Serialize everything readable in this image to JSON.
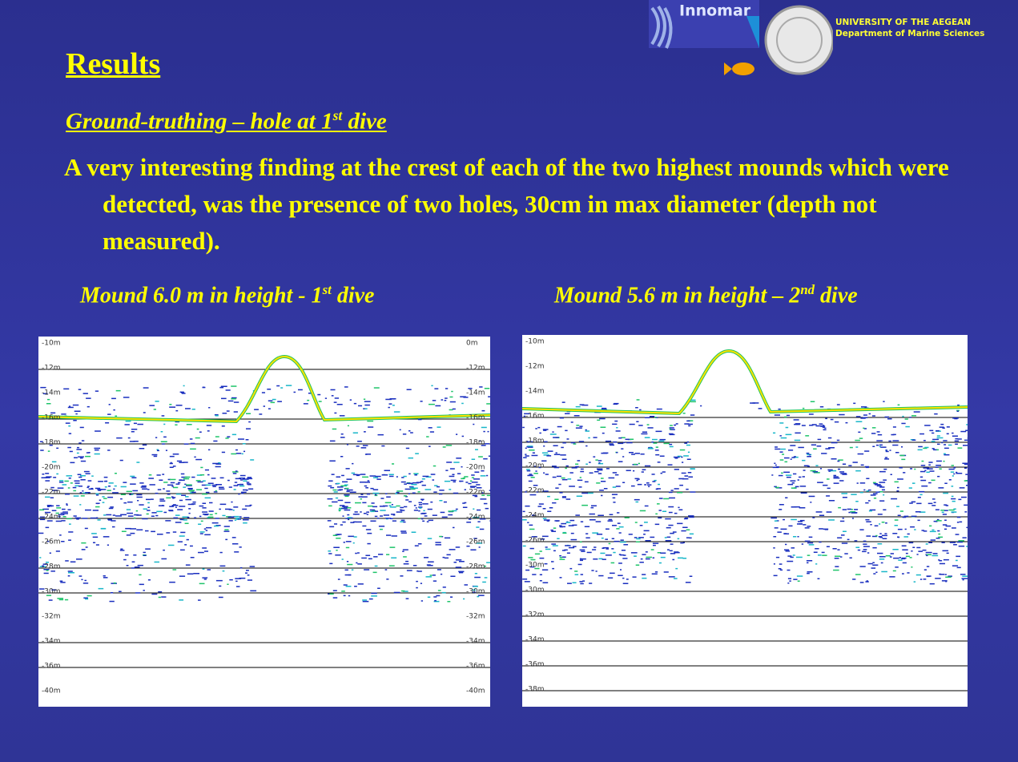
{
  "header": {
    "logo_text": "Innomar",
    "university": "UNIVERSITY OF THE AEGEAN",
    "department": "Department of Marine Sciences"
  },
  "title": "Results",
  "subtitle": {
    "text": "Ground-truthing – hole at 1",
    "sup": "st",
    "tail": " dive"
  },
  "body": "A very interesting finding at the crest of each of the two highest mounds which were detected, was the presence of two holes, 30cm in max diameter (depth not measured).",
  "panels": [
    {
      "caption": {
        "text": "Mound 6.0 m in height - 1",
        "sup": "st",
        "tail": " dive"
      },
      "left_labels": [
        "-10m",
        "-12m",
        "-14m",
        "-16m",
        "-18m",
        "-20m",
        "-22m",
        "-24m",
        "-26m",
        "-28m",
        "-30m",
        "-32m",
        "-34m",
        "-36m",
        "-40m"
      ],
      "right_labels": [
        "0m",
        "-12m",
        "-14m",
        "-16m",
        "-18m",
        "-20m",
        "-22m",
        "-24m",
        "-26m",
        "-28m",
        "-30m",
        "-32m",
        "-34m",
        "-36m",
        "-40m"
      ]
    },
    {
      "caption": {
        "text": "Mound 5.6 m in height – 2",
        "sup": "nd",
        "tail": " dive"
      },
      "left_labels": [
        "-10m",
        "-12m",
        "-14m",
        "-16m",
        "-18m",
        "-20m",
        "-22m",
        "-24m",
        "-26m",
        "-30m",
        "-30m",
        "-32m",
        "-34m",
        "-36m",
        "-38m"
      ]
    }
  ]
}
